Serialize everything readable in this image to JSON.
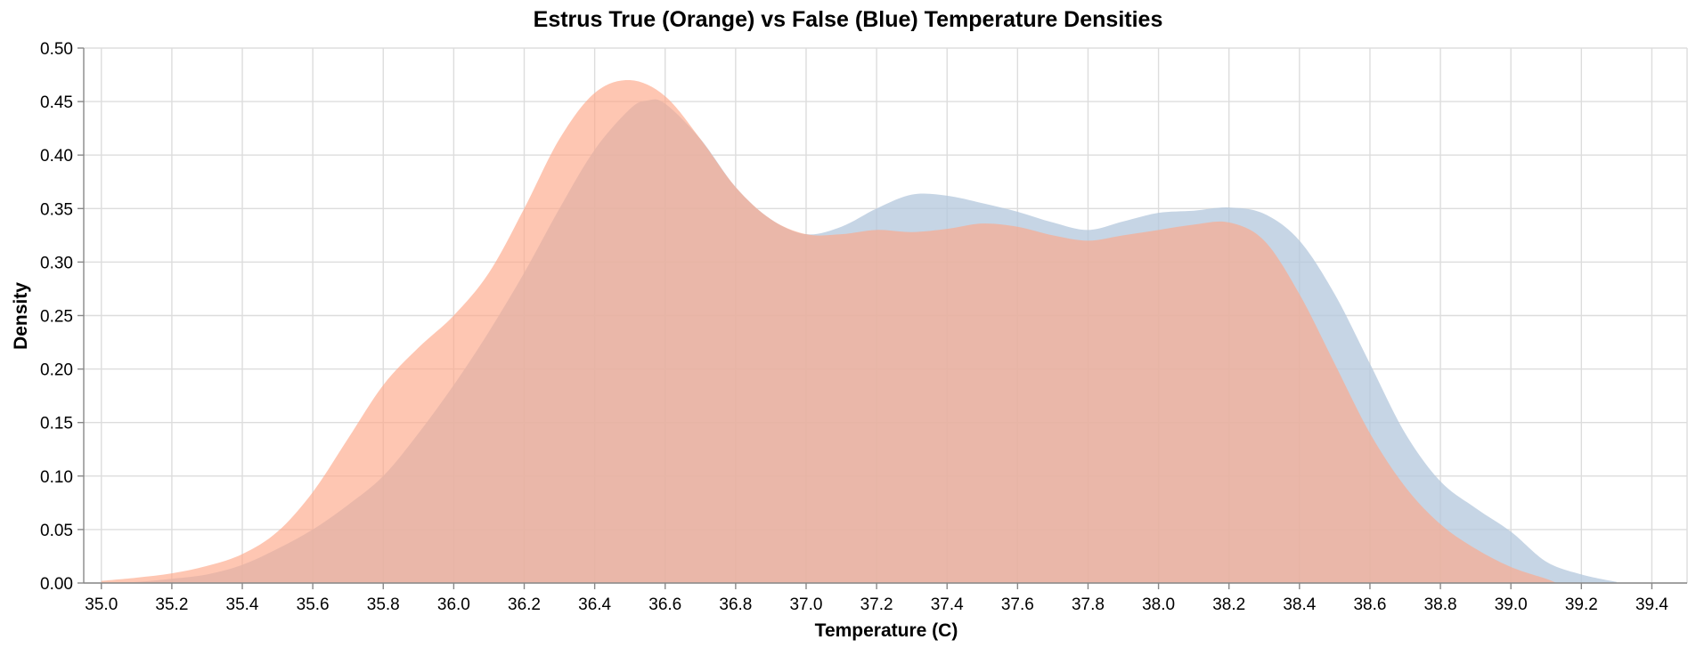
{
  "chart_data": {
    "type": "area",
    "title": "Estrus True (Orange) vs False (Blue) Temperature Densities",
    "xlabel": "Temperature (C)",
    "ylabel": "Density",
    "xlim": [
      34.95,
      39.5
    ],
    "ylim": [
      0,
      0.5
    ],
    "x_ticks": [
      "35.0",
      "35.2",
      "35.4",
      "35.6",
      "35.8",
      "36.0",
      "36.2",
      "36.4",
      "36.6",
      "36.8",
      "37.0",
      "37.2",
      "37.4",
      "37.6",
      "37.8",
      "38.0",
      "38.2",
      "38.4",
      "38.6",
      "38.8",
      "39.0",
      "39.2",
      "39.4"
    ],
    "y_ticks": [
      "0.00",
      "0.05",
      "0.10",
      "0.15",
      "0.20",
      "0.25",
      "0.30",
      "0.35",
      "0.40",
      "0.45",
      "0.50"
    ],
    "grid": true,
    "series": [
      {
        "color": "#b3c7dc",
        "opacity": 0.75,
        "points": [
          [
            35.0,
            0.0
          ],
          [
            35.1,
            0.001
          ],
          [
            35.2,
            0.004
          ],
          [
            35.3,
            0.008
          ],
          [
            35.4,
            0.017
          ],
          [
            35.5,
            0.032
          ],
          [
            35.6,
            0.05
          ],
          [
            35.7,
            0.073
          ],
          [
            35.8,
            0.1
          ],
          [
            35.9,
            0.14
          ],
          [
            36.0,
            0.185
          ],
          [
            36.1,
            0.235
          ],
          [
            36.2,
            0.29
          ],
          [
            36.3,
            0.35
          ],
          [
            36.4,
            0.405
          ],
          [
            36.5,
            0.443
          ],
          [
            36.55,
            0.451
          ],
          [
            36.6,
            0.448
          ],
          [
            36.7,
            0.415
          ],
          [
            36.8,
            0.37
          ],
          [
            36.9,
            0.34
          ],
          [
            37.0,
            0.326
          ],
          [
            37.1,
            0.333
          ],
          [
            37.2,
            0.35
          ],
          [
            37.3,
            0.363
          ],
          [
            37.4,
            0.362
          ],
          [
            37.5,
            0.355
          ],
          [
            37.6,
            0.347
          ],
          [
            37.7,
            0.337
          ],
          [
            37.8,
            0.33
          ],
          [
            37.9,
            0.338
          ],
          [
            38.0,
            0.346
          ],
          [
            38.1,
            0.348
          ],
          [
            38.2,
            0.351
          ],
          [
            38.3,
            0.345
          ],
          [
            38.4,
            0.32
          ],
          [
            38.5,
            0.27
          ],
          [
            38.6,
            0.205
          ],
          [
            38.7,
            0.14
          ],
          [
            38.8,
            0.095
          ],
          [
            38.9,
            0.07
          ],
          [
            39.0,
            0.048
          ],
          [
            39.1,
            0.02
          ],
          [
            39.2,
            0.008
          ],
          [
            39.3,
            0.001
          ]
        ]
      },
      {
        "color": "#fda888",
        "opacity": 0.65,
        "points": [
          [
            35.0,
            0.002
          ],
          [
            35.1,
            0.005
          ],
          [
            35.2,
            0.009
          ],
          [
            35.3,
            0.016
          ],
          [
            35.4,
            0.027
          ],
          [
            35.5,
            0.048
          ],
          [
            35.6,
            0.085
          ],
          [
            35.7,
            0.135
          ],
          [
            35.8,
            0.185
          ],
          [
            35.9,
            0.22
          ],
          [
            36.0,
            0.25
          ],
          [
            36.1,
            0.29
          ],
          [
            36.2,
            0.35
          ],
          [
            36.3,
            0.415
          ],
          [
            36.4,
            0.458
          ],
          [
            36.5,
            0.47
          ],
          [
            36.6,
            0.455
          ],
          [
            36.7,
            0.415
          ],
          [
            36.8,
            0.37
          ],
          [
            36.9,
            0.34
          ],
          [
            37.0,
            0.326
          ],
          [
            37.1,
            0.326
          ],
          [
            37.2,
            0.33
          ],
          [
            37.3,
            0.328
          ],
          [
            37.4,
            0.331
          ],
          [
            37.5,
            0.336
          ],
          [
            37.6,
            0.333
          ],
          [
            37.7,
            0.325
          ],
          [
            37.8,
            0.32
          ],
          [
            37.9,
            0.325
          ],
          [
            38.0,
            0.33
          ],
          [
            38.1,
            0.335
          ],
          [
            38.2,
            0.337
          ],
          [
            38.3,
            0.32
          ],
          [
            38.4,
            0.27
          ],
          [
            38.5,
            0.205
          ],
          [
            38.6,
            0.14
          ],
          [
            38.7,
            0.09
          ],
          [
            38.8,
            0.055
          ],
          [
            38.9,
            0.032
          ],
          [
            39.0,
            0.015
          ],
          [
            39.1,
            0.004
          ],
          [
            39.13,
            0.0
          ]
        ]
      }
    ]
  }
}
